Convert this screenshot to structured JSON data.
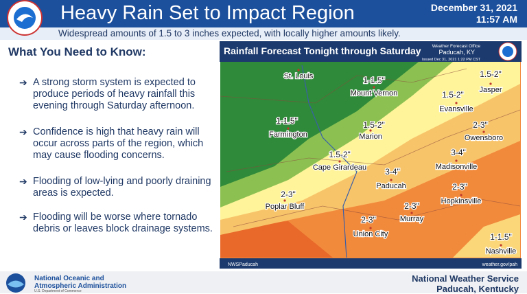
{
  "header": {
    "title": "Heavy Rain Set to Impact Region",
    "subtitle": "Widespread amounts of 1.5 to 3 inches expected, with locally higher amounts likely.",
    "date": "December 31, 2021",
    "time": "11:57 AM"
  },
  "left": {
    "heading": "What You Need to Know:",
    "bullets": [
      "A strong storm system is expected to produce periods of heavy rainfall this evening through Saturday afternoon.",
      "Confidence is high that heavy rain will occur across parts of the region, which may cause flooding concerns.",
      "Flooding of low-lying and poorly draining areas is expected.",
      "Flooding will be worse where tornado debris or leaves block drainage systems."
    ]
  },
  "map": {
    "title": "Rainfall Forecast Tonight through Saturday",
    "office": "Weather Forecast Office",
    "office_city": "Paducah, KY",
    "issued": "Issued Dec 31, 2021 1:22 PM CST",
    "social": "NWSPaducah",
    "url": "weather.gov/pah",
    "amounts": [
      "1-1.5\"",
      "1.5-2\"",
      "1.5-2\"",
      "1-1.5\"",
      "1.5-2\"",
      "2-3\"",
      "1.5-2\"",
      "3-4\"",
      "3-4\"",
      "2-3\"",
      "2-3\"",
      "2-3\"",
      "2-3\"",
      "1-1.5\""
    ],
    "cities": [
      "St. Louis",
      "Mount Vernon",
      "Jasper",
      "Evansville",
      "Farmington",
      "Marion",
      "Owensboro",
      "Cape Girardeau",
      "Paducah",
      "Madisonville",
      "Poplar Bluff",
      "Hopkinsville",
      "Murray",
      "Union City",
      "Nashville"
    ]
  },
  "footer": {
    "agency_line1": "National Oceanic and",
    "agency_line2": "Atmospheric Administration",
    "department": "U.S. Department of Commerce",
    "office_line1": "National Weather Service",
    "office_line2": "Paducah, Kentucky"
  }
}
